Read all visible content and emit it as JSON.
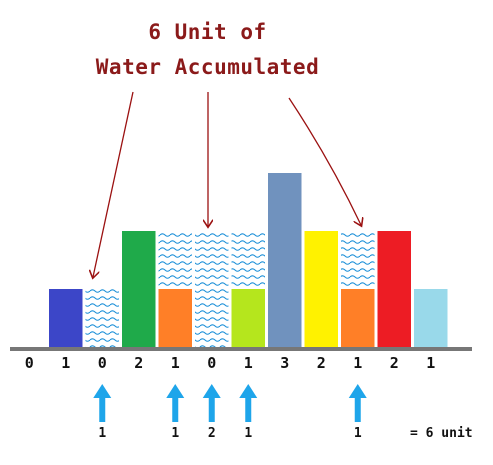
{
  "title": {
    "line1": "6 Unit of",
    "line2": "Water Accumulated"
  },
  "colors": {
    "title": "#8b1a1a",
    "water": "#1a8fd8",
    "arrow": "#1ea5ea",
    "axis": "#777777",
    "annotation_arrow": "#9b1111"
  },
  "chart_data": {
    "type": "bar",
    "heights": [
      0,
      1,
      0,
      2,
      1,
      0,
      1,
      3,
      2,
      1,
      2,
      1
    ],
    "height_labels": [
      "0",
      "1",
      "0",
      "2",
      "1",
      "0",
      "1",
      "3",
      "2",
      "1",
      "2",
      "1"
    ],
    "bar_colors": [
      "",
      "#3c46c8",
      "",
      "#1faa4a",
      "#ff7f27",
      "",
      "#b5e61d",
      "#7092be",
      "#fff200",
      "#ff7f27",
      "#ed1c24",
      "#99d9ea"
    ],
    "water": [
      0,
      0,
      1,
      0,
      1,
      2,
      1,
      0,
      0,
      1,
      0,
      0
    ],
    "water_labels": [
      "",
      "",
      "1",
      "",
      "1",
      "2",
      "1",
      "",
      "",
      "1",
      "",
      ""
    ],
    "total_label": "= 6 unit"
  }
}
